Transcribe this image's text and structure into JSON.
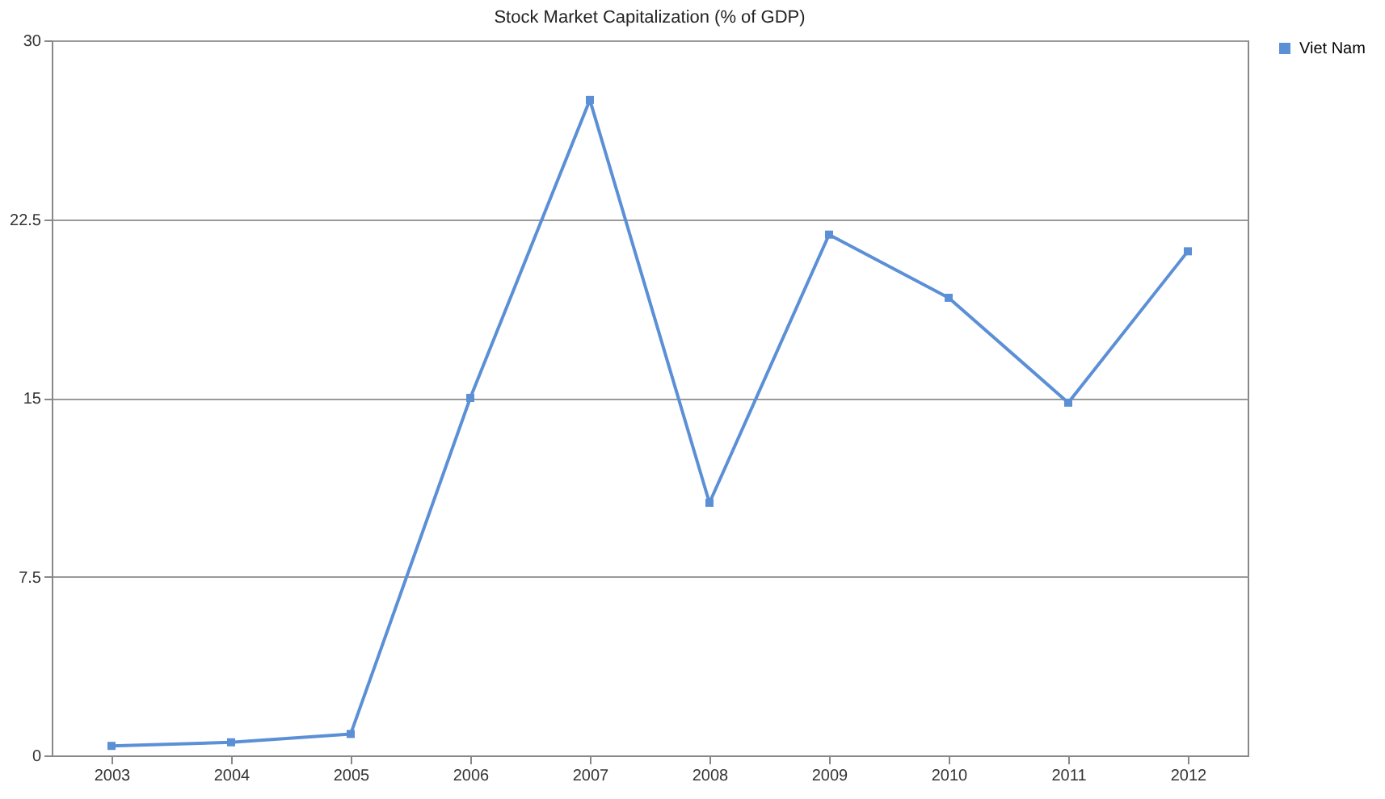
{
  "chart_data": {
    "type": "line",
    "title": "Stock Market Capitalization (% of GDP)",
    "categories": [
      "2003",
      "2004",
      "2005",
      "2006",
      "2007",
      "2008",
      "2009",
      "2010",
      "2011",
      "2012"
    ],
    "series": [
      {
        "name": "Viet Nam",
        "color": "#5b8fd6",
        "values": [
          0.4,
          0.55,
          0.9,
          15.0,
          27.5,
          10.6,
          21.85,
          19.2,
          14.8,
          21.15
        ]
      }
    ],
    "ylim": [
      0,
      30
    ],
    "yticks": [
      0,
      7.5,
      15,
      22.5,
      30
    ],
    "grid": "y",
    "legend": "top right",
    "marker": "square",
    "line_style": "solid"
  }
}
